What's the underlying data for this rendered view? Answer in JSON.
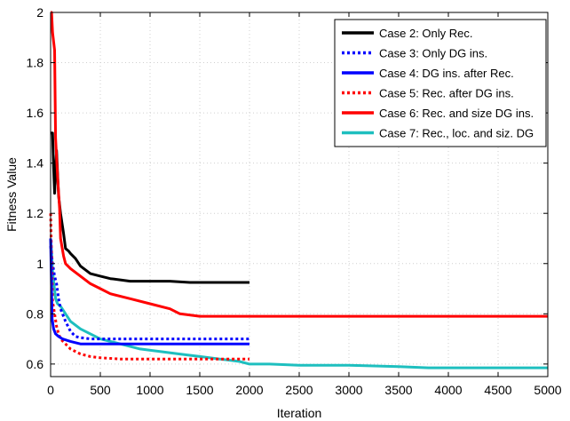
{
  "chart_data": {
    "type": "line",
    "title": "",
    "xlabel": "Iteration",
    "ylabel": "Fitness Value",
    "xlim": [
      0,
      5000
    ],
    "ylim": [
      0.55,
      2.0
    ],
    "xticks": [
      0,
      500,
      1000,
      1500,
      2000,
      2500,
      3000,
      3500,
      4000,
      4500,
      5000
    ],
    "yticks": [
      0.6,
      0.8,
      1,
      1.2,
      1.4,
      1.6,
      1.8,
      2
    ],
    "grid": true,
    "legend_position": "top-right",
    "series": [
      {
        "name": "Case 2: Only Rec.",
        "color": "#000000",
        "style": "solid",
        "x": [
          0,
          20,
          30,
          40,
          60,
          80,
          100,
          130,
          150,
          180,
          200,
          250,
          300,
          400,
          500,
          600,
          700,
          800,
          1000,
          1200,
          1400,
          1600,
          1800,
          2000
        ],
        "y": [
          1.52,
          1.52,
          1.38,
          1.28,
          1.45,
          1.27,
          1.2,
          1.12,
          1.06,
          1.05,
          1.04,
          1.02,
          0.99,
          0.96,
          0.95,
          0.94,
          0.935,
          0.93,
          0.93,
          0.93,
          0.925,
          0.925,
          0.925,
          0.925
        ]
      },
      {
        "name": "Case 3: Only DG ins.",
        "color": "#0000ff",
        "style": "dotted",
        "x": [
          0,
          20,
          40,
          60,
          80,
          100,
          150,
          200,
          250,
          300,
          400,
          500,
          700,
          1000,
          1500,
          2000
        ],
        "y": [
          1.07,
          1.0,
          0.95,
          0.92,
          0.86,
          0.82,
          0.77,
          0.73,
          0.71,
          0.705,
          0.7,
          0.7,
          0.7,
          0.7,
          0.7,
          0.7
        ]
      },
      {
        "name": "Case 4: DG ins. after Rec.",
        "color": "#0000ff",
        "style": "solid",
        "x": [
          0,
          15,
          30,
          50,
          80,
          120,
          200,
          300,
          500,
          800,
          1000,
          1500,
          2000
        ],
        "y": [
          1.1,
          0.78,
          0.74,
          0.72,
          0.71,
          0.7,
          0.69,
          0.68,
          0.68,
          0.68,
          0.68,
          0.68,
          0.68
        ]
      },
      {
        "name": "Case 5: Rec. after DG ins.",
        "color": "#ff0000",
        "style": "dotted",
        "x": [
          0,
          20,
          40,
          60,
          80,
          100,
          150,
          200,
          300,
          400,
          500,
          700,
          1000,
          1500,
          2000
        ],
        "y": [
          1.2,
          0.85,
          0.8,
          0.75,
          0.72,
          0.7,
          0.68,
          0.66,
          0.64,
          0.63,
          0.625,
          0.62,
          0.62,
          0.62,
          0.62
        ]
      },
      {
        "name": "Case 6: Rec. and size DG ins.",
        "color": "#ff0000",
        "style": "solid",
        "x": [
          0,
          10,
          20,
          40,
          50,
          70,
          90,
          100,
          130,
          150,
          200,
          300,
          400,
          500,
          600,
          800,
          1000,
          1200,
          1300,
          1500,
          2000,
          3000,
          4000,
          5000
        ],
        "y": [
          2.0,
          2.0,
          1.92,
          1.85,
          1.5,
          1.35,
          1.22,
          1.1,
          1.03,
          1.0,
          0.98,
          0.95,
          0.92,
          0.9,
          0.88,
          0.86,
          0.84,
          0.82,
          0.8,
          0.79,
          0.79,
          0.79,
          0.79,
          0.79
        ]
      },
      {
        "name": "Case 7: Rec., loc. and siz. DG",
        "color": "#1ebfbf",
        "style": "solid",
        "x": [
          0,
          10,
          20,
          30,
          50,
          70,
          100,
          150,
          200,
          300,
          500,
          700,
          900,
          1100,
          1300,
          1500,
          1700,
          1900,
          2000,
          2200,
          2500,
          3000,
          3500,
          3800,
          4000,
          4500,
          5000
        ],
        "y": [
          1.1,
          1.05,
          0.97,
          0.93,
          0.86,
          0.84,
          0.83,
          0.8,
          0.77,
          0.74,
          0.7,
          0.68,
          0.66,
          0.65,
          0.64,
          0.63,
          0.62,
          0.61,
          0.6,
          0.6,
          0.595,
          0.595,
          0.59,
          0.585,
          0.585,
          0.585,
          0.585
        ]
      }
    ]
  }
}
